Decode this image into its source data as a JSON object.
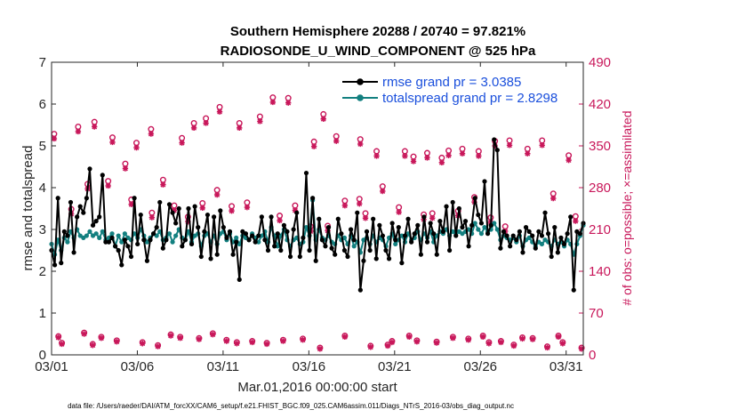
{
  "chart_data": {
    "type": "line",
    "title": "Southern Hemisphere 20288 / 20740 = 97.821%",
    "subtitle": "RADIOSONDE_U_WIND_COMPONENT @ 525 hPa",
    "xlabel": "Mar.01,2016 00:00:00 start",
    "ylabel": "rmse and totalspread",
    "ylabel_right": "# of obs: o=possible; ×=assimilated",
    "footnote": "data file: /Users/raeder/DAI/ATM_forcXX/CAM6_setup/f.e21.FHIST_BGC.f09_025.CAM6assim.011/Diags_NTrS_2016-03/obs_diag_output.nc",
    "xlim": [
      1,
      32
    ],
    "ylim": [
      0,
      7
    ],
    "ylim_right": [
      0,
      490
    ],
    "x_ticks": [
      {
        "day": 1,
        "label": "03/01"
      },
      {
        "day": 6,
        "label": "03/06"
      },
      {
        "day": 11,
        "label": "03/11"
      },
      {
        "day": 16,
        "label": "03/16"
      },
      {
        "day": 21,
        "label": "03/21"
      },
      {
        "day": 26,
        "label": "03/26"
      },
      {
        "day": 31,
        "label": "03/31"
      }
    ],
    "y_ticks": [
      "0",
      "1",
      "2",
      "3",
      "4",
      "5",
      "6",
      "7"
    ],
    "y_ticks_right": [
      "0",
      "70",
      "140",
      "210",
      "280",
      "350",
      "420",
      "490"
    ],
    "series": [
      {
        "name": "rmse grand pr = 3.0385",
        "color": "#000000",
        "values": [
          2.5,
          2.15,
          3.75,
          2.2,
          2.95,
          2.85,
          3.65,
          2.45,
          3.3,
          3.55,
          3.4,
          3.75,
          4.45,
          3.1,
          3.2,
          3.3,
          4.3,
          2.7,
          2.7,
          2.8,
          2.6,
          2.5,
          2.15,
          2.75,
          2.6,
          2.35,
          3.75,
          2.65,
          3.35,
          2.75,
          2.25,
          2.75,
          2.9,
          3.05,
          3.65,
          2.55,
          2.75,
          3.6,
          3.4,
          3.15,
          3.5,
          2.6,
          2.75,
          3.5,
          2.65,
          3.55,
          3.05,
          2.35,
          2.95,
          3.35,
          2.3,
          3.3,
          2.4,
          3.45,
          3.05,
          2.8,
          2.95,
          2.4,
          2.7,
          1.8,
          2.95,
          2.9,
          2.75,
          2.85,
          2.7,
          2.85,
          3.3,
          2.75,
          2.5,
          3.3,
          2.6,
          2.9,
          2.5,
          3.1,
          2.95,
          2.35,
          3.0,
          3.4,
          2.35,
          2.8,
          4.35,
          2.5,
          3.75,
          2.25,
          3.25,
          2.75,
          2.6,
          3.05,
          2.55,
          2.4,
          3.25,
          2.9,
          2.5,
          2.35,
          3.0,
          2.75,
          3.4,
          1.55,
          2.25,
          2.95,
          2.5,
          3.25,
          2.3,
          3.1,
          2.85,
          2.5,
          2.3,
          3.15,
          2.75,
          3.05,
          2.2,
          2.85,
          3.25,
          2.7,
          2.9,
          3.1,
          2.4,
          3.3,
          2.7,
          3.15,
          2.9,
          2.4,
          3.2,
          2.95,
          3.55,
          2.5,
          3.65,
          2.85,
          3.5,
          3.05,
          3.2,
          2.6,
          3.1,
          3.75,
          3.35,
          3.15,
          4.15,
          2.9,
          3.1,
          5.15,
          4.9,
          2.55,
          2.95,
          2.85,
          2.6,
          2.85,
          2.75,
          2.95,
          2.45,
          3.05,
          2.95,
          2.85,
          2.55,
          2.95,
          2.85,
          3.4,
          2.9,
          2.35,
          3.05,
          2.45,
          2.8,
          2.65,
          2.9,
          3.3,
          1.55,
          2.95,
          2.9,
          3.15
        ]
      },
      {
        "name": "totalspread grand pr = 2.8298",
        "color": "#138080",
        "values": [
          2.65,
          2.4,
          2.75,
          2.5,
          2.8,
          2.7,
          2.95,
          2.8,
          3.0,
          2.85,
          2.8,
          2.85,
          2.95,
          2.85,
          2.9,
          2.8,
          2.95,
          2.75,
          2.8,
          2.9,
          2.6,
          2.85,
          2.7,
          2.9,
          2.8,
          2.75,
          2.9,
          2.8,
          3.0,
          2.85,
          2.7,
          2.8,
          2.9,
          2.85,
          2.95,
          2.75,
          2.8,
          2.9,
          2.7,
          2.85,
          3.0,
          2.8,
          2.75,
          2.95,
          2.7,
          2.85,
          2.9,
          2.6,
          2.85,
          2.9,
          2.7,
          2.85,
          2.65,
          2.9,
          2.95,
          2.75,
          2.9,
          2.7,
          2.8,
          2.65,
          2.85,
          2.8,
          2.75,
          2.9,
          2.8,
          2.7,
          2.85,
          2.95,
          2.7,
          3.05,
          2.85,
          2.6,
          2.85,
          3.0,
          2.75,
          2.6,
          2.75,
          2.8,
          2.65,
          2.7,
          3.05,
          2.85,
          3.7,
          2.75,
          3.0,
          2.8,
          2.75,
          2.85,
          2.7,
          2.65,
          2.85,
          2.75,
          2.8,
          2.65,
          2.85,
          2.6,
          2.7,
          2.45,
          2.75,
          2.8,
          2.65,
          2.85,
          2.7,
          2.8,
          2.75,
          2.6,
          2.8,
          2.9,
          2.65,
          2.75,
          2.85,
          2.7,
          2.9,
          2.75,
          2.8,
          2.95,
          2.75,
          2.9,
          2.8,
          2.95,
          2.7,
          2.85,
          2.95,
          2.9,
          3.0,
          2.85,
          2.95,
          2.9,
          2.95,
          2.9,
          2.95,
          3.0,
          2.9,
          3.15,
          3.0,
          2.9,
          3.05,
          2.95,
          3.0,
          3.15,
          3.0,
          2.75,
          2.85,
          2.8,
          2.75,
          2.8,
          2.7,
          2.85,
          2.6,
          2.75,
          2.8,
          2.7,
          2.6,
          2.7,
          2.65,
          2.75,
          2.7,
          2.6,
          2.75,
          2.65,
          2.7,
          2.6,
          2.75,
          2.65,
          2.4,
          2.65,
          2.85,
          3.1
        ]
      },
      {
        "name": "obs possible",
        "color": "#c8175a",
        "axis": "right",
        "marker": "circle",
        "values": [
          [
            1.15,
            370
          ],
          [
            1.4,
            31
          ],
          [
            1.6,
            20
          ],
          [
            2.15,
            244
          ],
          [
            2.55,
            382
          ],
          [
            2.9,
            37
          ],
          [
            3.1,
            286
          ],
          [
            3.4,
            18
          ],
          [
            3.5,
            390
          ],
          [
            3.9,
            30
          ],
          [
            4.3,
            291
          ],
          [
            4.55,
            364
          ],
          [
            4.8,
            24
          ],
          [
            5.3,
            320
          ],
          [
            5.65,
            260
          ],
          [
            5.95,
            355
          ],
          [
            6.3,
            21
          ],
          [
            6.8,
            378
          ],
          [
            6.85,
            238
          ],
          [
            7.2,
            16
          ],
          [
            7.5,
            293
          ],
          [
            7.95,
            34
          ],
          [
            8.15,
            250
          ],
          [
            8.5,
            30
          ],
          [
            8.6,
            363
          ],
          [
            8.95,
            231
          ],
          [
            9.3,
            388
          ],
          [
            9.6,
            28
          ],
          [
            9.8,
            254
          ],
          [
            10.0,
            396
          ],
          [
            10.4,
            36
          ],
          [
            10.65,
            276
          ],
          [
            10.8,
            415
          ],
          [
            11.2,
            25
          ],
          [
            11.5,
            249
          ],
          [
            11.8,
            21
          ],
          [
            11.95,
            388
          ],
          [
            12.4,
            255
          ],
          [
            12.7,
            23
          ],
          [
            13.15,
            399
          ],
          [
            13.55,
            20
          ],
          [
            13.9,
            431
          ],
          [
            14.3,
            233
          ],
          [
            14.5,
            25
          ],
          [
            14.8,
            430
          ],
          [
            15.2,
            250
          ],
          [
            15.65,
            27
          ],
          [
            16.1,
            215
          ],
          [
            16.3,
            357
          ],
          [
            16.65,
            12
          ],
          [
            16.85,
            403
          ],
          [
            17.1,
            216
          ],
          [
            17.6,
            366
          ],
          [
            18.1,
            32
          ],
          [
            18.1,
            258
          ],
          [
            18.95,
            261
          ],
          [
            19.0,
            361
          ],
          [
            19.3,
            237
          ],
          [
            19.6,
            15
          ],
          [
            19.95,
            341
          ],
          [
            20.3,
            282
          ],
          [
            20.6,
            17
          ],
          [
            20.85,
            23
          ],
          [
            21.25,
            247
          ],
          [
            21.6,
            341
          ],
          [
            21.85,
            32
          ],
          [
            22.1,
            332
          ],
          [
            22.3,
            24
          ],
          [
            22.7,
            235
          ],
          [
            22.9,
            338
          ],
          [
            23.2,
            237
          ],
          [
            23.45,
            22
          ],
          [
            23.75,
            330
          ],
          [
            24.15,
            342
          ],
          [
            24.4,
            30
          ],
          [
            24.7,
            241
          ],
          [
            24.95,
            345
          ],
          [
            25.3,
            27
          ],
          [
            25.65,
            264
          ],
          [
            25.9,
            341
          ],
          [
            26.15,
            32
          ],
          [
            26.5,
            21
          ],
          [
            26.6,
            230
          ],
          [
            26.85,
            358
          ],
          [
            27.2,
            23
          ],
          [
            27.45,
            215
          ],
          [
            27.7,
            359
          ],
          [
            27.95,
            17
          ],
          [
            28.45,
            29
          ],
          [
            28.75,
            345
          ],
          [
            29.05,
            28
          ],
          [
            29.6,
            359
          ],
          [
            29.9,
            14
          ],
          [
            30.25,
            270
          ],
          [
            30.55,
            32
          ],
          [
            30.8,
            21
          ],
          [
            31.15,
            334
          ],
          [
            31.55,
            232
          ],
          [
            31.9,
            12
          ]
        ]
      },
      {
        "name": "obs assimilated",
        "color": "#c8175a",
        "axis": "right",
        "marker": "star",
        "values": [
          [
            1.15,
            362
          ],
          [
            1.4,
            29
          ],
          [
            1.6,
            18
          ],
          [
            2.15,
            236
          ],
          [
            2.55,
            374
          ],
          [
            2.9,
            35
          ],
          [
            3.1,
            278
          ],
          [
            3.4,
            16
          ],
          [
            3.5,
            382
          ],
          [
            3.9,
            28
          ],
          [
            4.3,
            283
          ],
          [
            4.55,
            356
          ],
          [
            4.8,
            22
          ],
          [
            5.3,
            312
          ],
          [
            5.65,
            252
          ],
          [
            5.95,
            347
          ],
          [
            6.3,
            19
          ],
          [
            6.8,
            370
          ],
          [
            6.85,
            230
          ],
          [
            7.2,
            14
          ],
          [
            7.5,
            285
          ],
          [
            7.95,
            32
          ],
          [
            8.15,
            242
          ],
          [
            8.5,
            28
          ],
          [
            8.6,
            355
          ],
          [
            8.95,
            223
          ],
          [
            9.3,
            380
          ],
          [
            9.6,
            26
          ],
          [
            9.8,
            246
          ],
          [
            10.0,
            388
          ],
          [
            10.4,
            34
          ],
          [
            10.65,
            268
          ],
          [
            10.8,
            407
          ],
          [
            11.2,
            23
          ],
          [
            11.5,
            241
          ],
          [
            11.8,
            19
          ],
          [
            11.95,
            380
          ],
          [
            12.4,
            247
          ],
          [
            12.7,
            21
          ],
          [
            13.15,
            391
          ],
          [
            13.55,
            18
          ],
          [
            13.9,
            423
          ],
          [
            14.3,
            225
          ],
          [
            14.5,
            23
          ],
          [
            14.8,
            422
          ],
          [
            15.2,
            242
          ],
          [
            15.65,
            25
          ],
          [
            16.1,
            207
          ],
          [
            16.3,
            349
          ],
          [
            16.65,
            10
          ],
          [
            16.85,
            395
          ],
          [
            17.1,
            208
          ],
          [
            17.6,
            358
          ],
          [
            18.1,
            30
          ],
          [
            18.1,
            250
          ],
          [
            18.95,
            253
          ],
          [
            19.0,
            353
          ],
          [
            19.3,
            229
          ],
          [
            19.6,
            13
          ],
          [
            19.95,
            333
          ],
          [
            20.3,
            274
          ],
          [
            20.6,
            15
          ],
          [
            20.85,
            21
          ],
          [
            21.25,
            239
          ],
          [
            21.6,
            333
          ],
          [
            21.85,
            30
          ],
          [
            22.1,
            324
          ],
          [
            22.3,
            22
          ],
          [
            22.7,
            227
          ],
          [
            22.9,
            330
          ],
          [
            23.2,
            229
          ],
          [
            23.45,
            20
          ],
          [
            23.75,
            322
          ],
          [
            24.15,
            334
          ],
          [
            24.4,
            28
          ],
          [
            24.7,
            233
          ],
          [
            24.95,
            337
          ],
          [
            25.3,
            25
          ],
          [
            25.65,
            256
          ],
          [
            25.9,
            333
          ],
          [
            26.15,
            30
          ],
          [
            26.5,
            19
          ],
          [
            26.6,
            222
          ],
          [
            26.85,
            350
          ],
          [
            27.2,
            21
          ],
          [
            27.45,
            207
          ],
          [
            27.7,
            351
          ],
          [
            27.95,
            15
          ],
          [
            28.45,
            27
          ],
          [
            28.75,
            337
          ],
          [
            29.05,
            26
          ],
          [
            29.6,
            351
          ],
          [
            29.9,
            12
          ],
          [
            30.25,
            262
          ],
          [
            30.55,
            30
          ],
          [
            30.8,
            19
          ],
          [
            31.15,
            326
          ],
          [
            31.55,
            224
          ],
          [
            31.9,
            10
          ]
        ]
      }
    ],
    "legend_position": "top-right"
  }
}
